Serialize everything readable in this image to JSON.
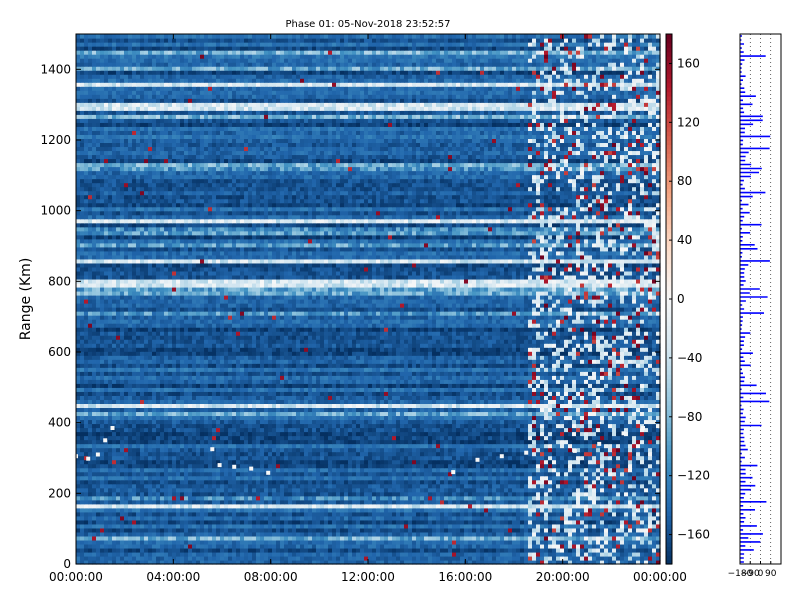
{
  "chart_data": [
    {
      "type": "heatmap",
      "title": "Phase 01: 05-Nov-2018 23:52:57",
      "ylabel": "Range (Km)",
      "xlabel": "",
      "x_tick_labels": [
        "00:00:00",
        "04:00:00",
        "08:00:00",
        "12:00:00",
        "16:00:00",
        "20:00:00",
        "00:00:00"
      ],
      "x_range_hours": [
        0,
        24
      ],
      "y_ticks": [
        0,
        200,
        400,
        600,
        800,
        1000,
        1200,
        1400
      ],
      "ylim": [
        0,
        1500
      ],
      "colorbar": {
        "colormap": "RdBu_r",
        "range": [
          -180,
          180
        ],
        "ticks": [
          160,
          120,
          80,
          40,
          0,
          -40,
          -80,
          -120,
          -160
        ],
        "tick_labels": [
          "160",
          "120",
          "80",
          "40",
          "0",
          "−40",
          "−80",
          "−120",
          "−160"
        ]
      },
      "dominant_value": -150,
      "bright_bands_km": [
        1355,
        1295,
        975,
        855,
        795,
        450,
        165
      ],
      "trace_points": [
        {
          "hour": 0.0,
          "range_km": 305
        },
        {
          "hour": 0.5,
          "range_km": 298
        },
        {
          "hour": 0.9,
          "range_km": 310
        },
        {
          "hour": 1.2,
          "range_km": 350
        },
        {
          "hour": 1.5,
          "range_km": 385
        },
        {
          "hour": 5.6,
          "range_km": 325
        },
        {
          "hour": 5.9,
          "range_km": 280
        },
        {
          "hour": 6.5,
          "range_km": 275
        },
        {
          "hour": 7.2,
          "range_km": 270
        },
        {
          "hour": 7.9,
          "range_km": 258
        },
        {
          "hour": 15.5,
          "range_km": 260
        },
        {
          "hour": 16.5,
          "range_km": 295
        },
        {
          "hour": 17.5,
          "range_km": 305
        },
        {
          "hour": 18.5,
          "range_km": 315
        },
        {
          "hour": 20.5,
          "range_km": 320
        },
        {
          "hour": 21.5,
          "range_km": 340
        },
        {
          "hour": 22.5,
          "range_km": 370
        },
        {
          "hour": 23.3,
          "range_km": 385
        },
        {
          "hour": 24.0,
          "range_km": 390
        }
      ],
      "active_period_hours": [
        18.5,
        24
      ]
    },
    {
      "type": "line",
      "title": "",
      "x_tick_labels": [
        "−180",
        "−90",
        "0",
        "90"
      ],
      "x_range": [
        -180,
        180
      ],
      "ylim": [
        0,
        1500
      ],
      "line_color": "#0000ff"
    }
  ]
}
